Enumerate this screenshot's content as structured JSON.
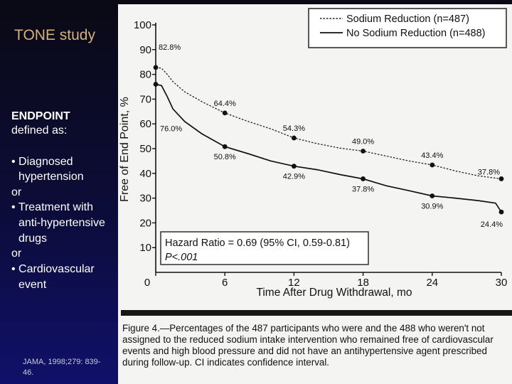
{
  "slide": {
    "title": "TONE study",
    "endpoint_heading": "ENDPOINT",
    "endpoint_sub": "defined as:",
    "criteria": [
      "• Diagnosed",
      "hypertension",
      "or",
      "• Treatment with",
      "anti-hypertensive",
      "drugs",
      "or",
      "• Cardiovascular",
      "event"
    ],
    "citation": "JAMA, 1998;279: 839-46."
  },
  "caption": "Figure 4.—Percentages of the 487 participants who were and the 488 who weren't not assigned to the reduced sodium intake intervention who remained free of cardiovascular events and high blood pressure and did not have an antihyper­tensive agent prescribed during follow-up. CI indicates confidence interval.",
  "chart_data": {
    "type": "line",
    "title": "",
    "xlabel": "Time After Drug Withdrawal, mo",
    "ylabel": "Free of End Point, %",
    "xlim": [
      0,
      30
    ],
    "ylim": [
      0,
      100
    ],
    "x_ticks": [
      "0",
      "6",
      "12",
      "18",
      "24",
      "30"
    ],
    "y_ticks": [
      "10",
      "20",
      "30",
      "40",
      "50",
      "60",
      "70",
      "80",
      "90",
      "100"
    ],
    "x_tick_values": [
      0,
      6,
      12,
      18,
      24,
      30
    ],
    "y_tick_values": [
      10,
      20,
      30,
      40,
      50,
      60,
      70,
      80,
      90,
      100
    ],
    "legend": {
      "placement": "top-right"
    },
    "series": [
      {
        "name": "Sodium Reduction (n=487)",
        "style": "dashed",
        "color": "#222222",
        "points": [
          [
            0,
            82.8
          ],
          [
            0.5,
            82.5
          ],
          [
            1,
            80
          ],
          [
            1.5,
            77
          ],
          [
            2.5,
            73
          ],
          [
            4,
            69
          ],
          [
            6,
            64.4
          ],
          [
            8,
            61
          ],
          [
            10,
            58
          ],
          [
            12,
            54.3
          ],
          [
            14,
            52
          ],
          [
            16,
            50.2
          ],
          [
            18,
            49.0
          ],
          [
            20,
            47
          ],
          [
            22,
            45
          ],
          [
            24,
            43.4
          ],
          [
            26,
            41
          ],
          [
            28,
            39
          ],
          [
            30,
            37.8
          ]
        ],
        "labels": [
          {
            "x": 0,
            "y": 82.8,
            "text": "82.8%"
          },
          {
            "x": 6,
            "y": 64.4,
            "text": "64.4%"
          },
          {
            "x": 12,
            "y": 54.3,
            "text": "54.3%"
          },
          {
            "x": 18,
            "y": 49.0,
            "text": "49.0%"
          },
          {
            "x": 24,
            "y": 43.4,
            "text": "43.4%"
          },
          {
            "x": 30,
            "y": 37.8,
            "text": "37.8%"
          }
        ]
      },
      {
        "name": "No Sodium Reduction (n=488)",
        "style": "solid",
        "color": "#111111",
        "points": [
          [
            0,
            76.0
          ],
          [
            0.5,
            75.5
          ],
          [
            1,
            71
          ],
          [
            1.5,
            66
          ],
          [
            2.5,
            61
          ],
          [
            4,
            56
          ],
          [
            6,
            50.8
          ],
          [
            8,
            48
          ],
          [
            10,
            45
          ],
          [
            12,
            42.9
          ],
          [
            14,
            41.5
          ],
          [
            16,
            39.5
          ],
          [
            18,
            37.8
          ],
          [
            20,
            35
          ],
          [
            22,
            33
          ],
          [
            24,
            30.9
          ],
          [
            26,
            30
          ],
          [
            28,
            29
          ],
          [
            29.5,
            28
          ],
          [
            30,
            24.4
          ]
        ],
        "labels": [
          {
            "x": 0,
            "y": 76.0,
            "text": "76.0%"
          },
          {
            "x": 6,
            "y": 50.8,
            "text": "50.8%"
          },
          {
            "x": 12,
            "y": 42.9,
            "text": "42.9%"
          },
          {
            "x": 18,
            "y": 37.8,
            "text": "37.8%"
          },
          {
            "x": 24,
            "y": 30.9,
            "text": "30.9%"
          },
          {
            "x": 30,
            "y": 24.4,
            "text": "24.4%"
          }
        ]
      }
    ],
    "annotation": {
      "line1": "Hazard Ratio = 0.69 (95% CI, 0.59-0.81)",
      "line2": "P<.001"
    }
  }
}
